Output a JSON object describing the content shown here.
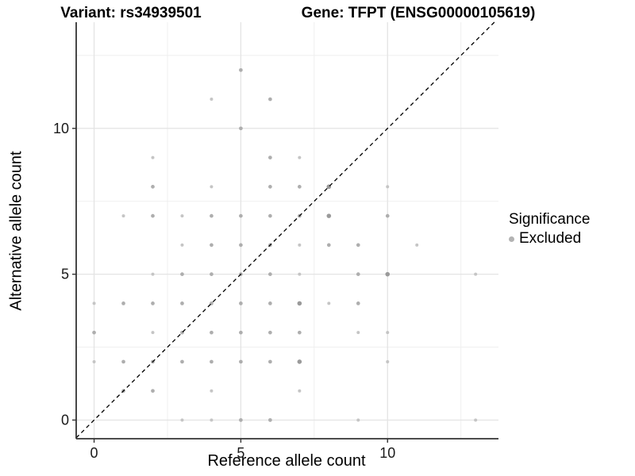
{
  "titles": {
    "variant": "Variant: rs34939501",
    "gene": "Gene: TFPT (ENSG00000105619)"
  },
  "legend": {
    "title": "Significance",
    "items": [
      {
        "label": "Excluded",
        "color": "#b3b3b3"
      }
    ]
  },
  "chart_data": {
    "type": "scatter",
    "title": "",
    "xlabel": "Reference allele count",
    "ylabel": "Alternative allele count",
    "xlim": [
      -0.61,
      13.78
    ],
    "ylim": [
      -0.64,
      13.64
    ],
    "x_ticks": [
      0,
      5,
      10
    ],
    "y_ticks": [
      0,
      5,
      10
    ],
    "x_minor_gridlines": [
      2.5,
      7.5,
      12.5
    ],
    "y_minor_gridlines": [
      2.5,
      7.5,
      12.5
    ],
    "grid_on": true,
    "legend_position": "right",
    "identity_line": {
      "slope": 1,
      "intercept": 0,
      "style": "dashed",
      "color": "#000000"
    },
    "series_name": "Excluded",
    "size_classes": {
      "1": {
        "r": 2.0,
        "color": "#c5c5c5"
      },
      "2": {
        "r": 2.35,
        "color": "#aeaeae"
      },
      "3": {
        "r": 2.8,
        "color": "#9a9a9a"
      }
    },
    "points": [
      {
        "x": 5,
        "y": 12,
        "n": 2
      },
      {
        "x": 4,
        "y": 11,
        "n": 1
      },
      {
        "x": 6,
        "y": 11,
        "n": 2
      },
      {
        "x": 5,
        "y": 10,
        "n": 2
      },
      {
        "x": 2,
        "y": 9,
        "n": 1
      },
      {
        "x": 6,
        "y": 9,
        "n": 2
      },
      {
        "x": 7,
        "y": 9,
        "n": 1
      },
      {
        "x": 2,
        "y": 8,
        "n": 2
      },
      {
        "x": 4,
        "y": 8,
        "n": 1
      },
      {
        "x": 6,
        "y": 8,
        "n": 2
      },
      {
        "x": 7,
        "y": 8,
        "n": 2
      },
      {
        "x": 8,
        "y": 8,
        "n": 3
      },
      {
        "x": 10,
        "y": 8,
        "n": 1
      },
      {
        "x": 1,
        "y": 7,
        "n": 1
      },
      {
        "x": 2,
        "y": 7,
        "n": 2
      },
      {
        "x": 3,
        "y": 7,
        "n": 1
      },
      {
        "x": 4,
        "y": 7,
        "n": 2
      },
      {
        "x": 5,
        "y": 7,
        "n": 2
      },
      {
        "x": 6,
        "y": 7,
        "n": 2
      },
      {
        "x": 7,
        "y": 7,
        "n": 2
      },
      {
        "x": 8,
        "y": 7,
        "n": 3
      },
      {
        "x": 10,
        "y": 7,
        "n": 2
      },
      {
        "x": 3,
        "y": 6,
        "n": 1
      },
      {
        "x": 4,
        "y": 6,
        "n": 2
      },
      {
        "x": 5,
        "y": 6,
        "n": 2
      },
      {
        "x": 6,
        "y": 6,
        "n": 2
      },
      {
        "x": 7,
        "y": 6,
        "n": 1
      },
      {
        "x": 8,
        "y": 6,
        "n": 2
      },
      {
        "x": 9,
        "y": 6,
        "n": 2
      },
      {
        "x": 11,
        "y": 6,
        "n": 1
      },
      {
        "x": 2,
        "y": 5,
        "n": 1
      },
      {
        "x": 3,
        "y": 5,
        "n": 2
      },
      {
        "x": 4,
        "y": 5,
        "n": 2
      },
      {
        "x": 5,
        "y": 5,
        "n": 2
      },
      {
        "x": 6,
        "y": 5,
        "n": 2
      },
      {
        "x": 7,
        "y": 5,
        "n": 1
      },
      {
        "x": 9,
        "y": 5,
        "n": 2
      },
      {
        "x": 10,
        "y": 5,
        "n": 3
      },
      {
        "x": 13,
        "y": 5,
        "n": 1
      },
      {
        "x": 0,
        "y": 4,
        "n": 1
      },
      {
        "x": 1,
        "y": 4,
        "n": 2
      },
      {
        "x": 2,
        "y": 4,
        "n": 2
      },
      {
        "x": 3,
        "y": 4,
        "n": 2
      },
      {
        "x": 4,
        "y": 4,
        "n": 2
      },
      {
        "x": 5,
        "y": 4,
        "n": 2
      },
      {
        "x": 6,
        "y": 4,
        "n": 2
      },
      {
        "x": 7,
        "y": 4,
        "n": 3
      },
      {
        "x": 8,
        "y": 4,
        "n": 1
      },
      {
        "x": 9,
        "y": 4,
        "n": 2
      },
      {
        "x": 0,
        "y": 3,
        "n": 2
      },
      {
        "x": 2,
        "y": 3,
        "n": 1
      },
      {
        "x": 3,
        "y": 3,
        "n": 2
      },
      {
        "x": 4,
        "y": 3,
        "n": 2
      },
      {
        "x": 5,
        "y": 3,
        "n": 2
      },
      {
        "x": 6,
        "y": 3,
        "n": 2
      },
      {
        "x": 7,
        "y": 3,
        "n": 2
      },
      {
        "x": 9,
        "y": 3,
        "n": 1
      },
      {
        "x": 10,
        "y": 3,
        "n": 1
      },
      {
        "x": 0,
        "y": 2,
        "n": 1
      },
      {
        "x": 1,
        "y": 2,
        "n": 2
      },
      {
        "x": 2,
        "y": 2,
        "n": 2
      },
      {
        "x": 3,
        "y": 2,
        "n": 2
      },
      {
        "x": 4,
        "y": 2,
        "n": 2
      },
      {
        "x": 5,
        "y": 2,
        "n": 2
      },
      {
        "x": 6,
        "y": 2,
        "n": 2
      },
      {
        "x": 7,
        "y": 2,
        "n": 3
      },
      {
        "x": 10,
        "y": 2,
        "n": 1
      },
      {
        "x": 1,
        "y": 1,
        "n": 2
      },
      {
        "x": 2,
        "y": 1,
        "n": 2
      },
      {
        "x": 4,
        "y": 1,
        "n": 1
      },
      {
        "x": 7,
        "y": 1,
        "n": 1
      },
      {
        "x": 3,
        "y": 0,
        "n": 1
      },
      {
        "x": 4,
        "y": 0,
        "n": 1
      },
      {
        "x": 5,
        "y": 0,
        "n": 2
      },
      {
        "x": 6,
        "y": 0,
        "n": 2
      },
      {
        "x": 9,
        "y": 0,
        "n": 1
      },
      {
        "x": 13,
        "y": 0,
        "n": 1
      }
    ],
    "style": {
      "major_grid_color": "#e4e4e4",
      "minor_grid_color": "#efefef",
      "axis_line_color": "#333333",
      "tick_label_color": "#1a1a1a",
      "tick_label_size": 18
    }
  }
}
